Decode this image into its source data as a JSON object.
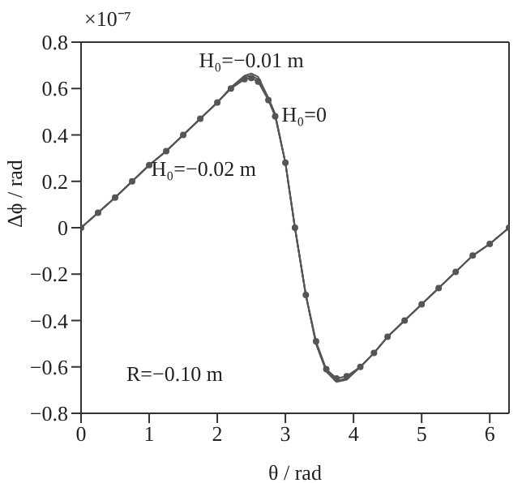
{
  "chart_data": {
    "type": "line",
    "xlabel": "θ / rad",
    "ylabel": "Δϕ / rad",
    "x": [
      0,
      0.25,
      0.5,
      0.75,
      1.0,
      1.25,
      1.5,
      1.75,
      2.0,
      2.2,
      2.4,
      2.5,
      2.6,
      2.75,
      2.85,
      3.0,
      3.14,
      3.3,
      3.45,
      3.6,
      3.75,
      3.9,
      4.1,
      4.3,
      4.5,
      4.75,
      5.0,
      5.25,
      5.5,
      5.75,
      6.0,
      6.283
    ],
    "series": [
      {
        "color": "#555555",
        "marker": "circle",
        "values": [
          0,
          0.065,
          0.13,
          0.2,
          0.27,
          0.33,
          0.4,
          0.47,
          0.54,
          0.6,
          0.64,
          0.645,
          0.63,
          0.55,
          0.48,
          0.28,
          0,
          -0.29,
          -0.49,
          -0.61,
          -0.65,
          -0.64,
          -0.6,
          -0.54,
          -0.47,
          -0.4,
          -0.33,
          -0.26,
          -0.19,
          -0.12,
          -0.07,
          0
        ]
      },
      {
        "color": "#555555",
        "marker": "none",
        "values": [
          0,
          0.065,
          0.13,
          0.2,
          0.27,
          0.33,
          0.4,
          0.47,
          0.54,
          0.605,
          0.655,
          0.665,
          0.65,
          0.56,
          0.49,
          0.28,
          0,
          -0.29,
          -0.5,
          -0.62,
          -0.665,
          -0.655,
          -0.6,
          -0.54,
          -0.47,
          -0.4,
          -0.33,
          -0.26,
          -0.19,
          -0.12,
          -0.07,
          0
        ]
      },
      {
        "color": "#555555",
        "marker": "none",
        "values": [
          0,
          0.065,
          0.13,
          0.2,
          0.27,
          0.33,
          0.4,
          0.47,
          0.54,
          0.6,
          0.65,
          0.655,
          0.64,
          0.555,
          0.485,
          0.28,
          0,
          -0.29,
          -0.5,
          -0.615,
          -0.66,
          -0.65,
          -0.6,
          -0.54,
          -0.47,
          -0.4,
          -0.33,
          -0.26,
          -0.19,
          -0.12,
          -0.07,
          0
        ]
      }
    ],
    "xlim": [
      0,
      6.283
    ],
    "xticks": [
      0,
      1,
      2,
      3,
      4,
      5,
      6
    ],
    "ylim": [
      -0.8,
      0.8
    ],
    "yticks": [
      -0.8,
      -0.6,
      -0.4,
      -0.2,
      0,
      0.2,
      0.4,
      0.6,
      0.8
    ],
    "grid": false,
    "legend": false,
    "annotations": [
      {
        "text": "H₀=−0.01 m",
        "x": 2.5,
        "y": 0.665
      },
      {
        "text": "H₀=0",
        "x": 2.85,
        "y": 0.49
      },
      {
        "text": "H₀=−0.02 m",
        "x": 1.8,
        "y": 0.47
      },
      "×10⁻⁷",
      "R=−0.10 m"
    ]
  }
}
